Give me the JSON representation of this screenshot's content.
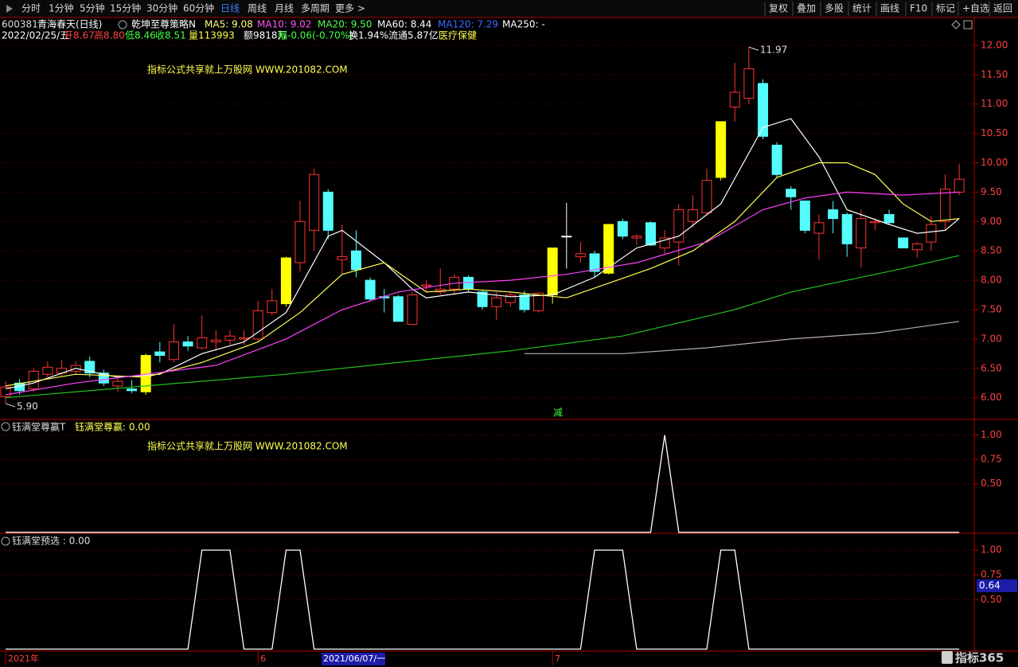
{
  "toolbar": {
    "left": [
      "分时",
      "1分钟",
      "5分钟",
      "15分钟",
      "30分钟",
      "60分钟",
      "日线",
      "周线",
      "月线",
      "多周期",
      "更多 >"
    ],
    "active": 6,
    "right": [
      "复权",
      "叠加",
      "多股",
      "统计",
      "画线",
      "F10",
      "标记",
      "+自选",
      "返回"
    ]
  },
  "info": {
    "code": "600381",
    "name": "青海春天(日线)",
    "strategy": "乾坤至尊策略N",
    "extra_ma": {
      "text": "MA250: -",
      "color": "#ffffff"
    },
    "row2": [
      {
        "text": "2022/02/25/五",
        "color": "#ffffff"
      },
      {
        "text": "开8.67",
        "color": "#ff4040"
      },
      {
        "text": "高8.80",
        "color": "#ff4040"
      },
      {
        "text": "低8.46",
        "color": "#40ff40"
      },
      {
        "text": "收8.51",
        "color": "#40ff40"
      },
      {
        "text": "量113993",
        "color": "#ffff54"
      },
      {
        "text": "额9818万",
        "color": "#ffffff"
      },
      {
        "text": "幅-0.06(-0.70%)",
        "color": "#40ff40"
      },
      {
        "text": "换1.94%",
        "color": "#ffffff"
      },
      {
        "text": "流通5.87亿",
        "color": "#ffffff"
      },
      {
        "text": "医疗保健",
        "color": "#ffff54"
      }
    ]
  },
  "watermark": [
    "指标公式共享就上万股网 WWW.201082.COM",
    "指标公式共享就上万股网 WWW.201082.COM"
  ],
  "signal_label": "减",
  "cursor_date": "2021/06/07/一",
  "logo": "指标365",
  "chart_data": [
    {
      "type": "candlestick",
      "categories": [
        "2021年",
        null,
        null,
        null,
        null,
        null,
        null,
        null,
        null,
        null,
        null,
        null,
        null,
        null,
        null,
        null,
        null,
        null,
        "6",
        null,
        null,
        null,
        null,
        null,
        null,
        null,
        null,
        null,
        null,
        null,
        null,
        null,
        null,
        null,
        null,
        null,
        null,
        null,
        null,
        "7",
        null,
        null,
        null,
        null,
        null,
        null,
        null,
        null,
        null,
        null,
        null,
        null,
        null,
        null,
        null,
        null,
        null,
        null,
        null,
        null,
        null,
        null,
        null,
        null,
        null,
        null,
        null,
        null,
        null
      ],
      "open": [
        6.02,
        6.25,
        6.15,
        6.4,
        6.42,
        6.45,
        6.62,
        6.42,
        6.2,
        6.15,
        6.1,
        6.78,
        6.65,
        6.95,
        6.85,
        6.95,
        6.98,
        7.0,
        7.0,
        7.45,
        7.6,
        8.3,
        8.85,
        9.5,
        8.35,
        8.5,
        8.0,
        7.72,
        7.72,
        7.25,
        7.9,
        7.8,
        7.85,
        8.05,
        7.8,
        7.55,
        7.62,
        7.75,
        7.48,
        7.75,
        8.75,
        8.4,
        8.45,
        8.12,
        9.0,
        8.72,
        8.98,
        8.55,
        8.65,
        9.0,
        9.15,
        9.75,
        10.95,
        11.1,
        11.35,
        10.3,
        9.55,
        9.35,
        8.8,
        9.2,
        9.12,
        8.55,
        8.98,
        9.12,
        8.72,
        8.52,
        8.65,
        9.0,
        9.5
      ],
      "high": [
        6.28,
        6.32,
        6.5,
        6.62,
        6.65,
        6.62,
        6.7,
        6.48,
        6.35,
        6.3,
        6.75,
        6.95,
        7.25,
        7.05,
        7.4,
        7.15,
        7.15,
        7.15,
        7.65,
        7.85,
        8.4,
        9.35,
        9.9,
        9.55,
        8.95,
        8.85,
        8.05,
        7.85,
        7.75,
        7.8,
        8.0,
        8.2,
        8.1,
        8.08,
        7.82,
        7.8,
        7.8,
        7.82,
        7.8,
        8.55,
        9.32,
        8.65,
        8.5,
        8.95,
        9.05,
        8.78,
        9.0,
        8.85,
        9.3,
        9.45,
        9.9,
        10.7,
        11.7,
        11.97,
        11.42,
        10.35,
        9.6,
        9.35,
        9.12,
        9.35,
        9.15,
        9.2,
        9.05,
        9.2,
        8.72,
        8.65,
        9.1,
        9.8,
        9.98
      ],
      "low": [
        5.9,
        6.05,
        6.1,
        6.35,
        6.38,
        6.4,
        6.35,
        6.2,
        6.1,
        6.08,
        6.05,
        6.6,
        6.6,
        6.8,
        6.82,
        6.8,
        6.9,
        6.9,
        6.95,
        7.4,
        7.55,
        8.15,
        8.5,
        8.7,
        8.1,
        8.05,
        7.65,
        7.45,
        7.3,
        7.25,
        7.8,
        7.75,
        7.75,
        7.8,
        7.5,
        7.32,
        7.55,
        7.45,
        7.45,
        7.6,
        8.2,
        8.3,
        8.05,
        8.1,
        8.7,
        8.6,
        8.58,
        8.45,
        8.25,
        8.9,
        9.1,
        9.7,
        10.7,
        11.0,
        10.4,
        9.75,
        9.2,
        8.8,
        8.35,
        8.8,
        8.4,
        8.22,
        8.85,
        8.95,
        8.55,
        8.38,
        8.5,
        8.85,
        9.45
      ],
      "close": [
        6.18,
        6.12,
        6.45,
        6.52,
        6.5,
        6.55,
        6.42,
        6.25,
        6.28,
        6.12,
        6.72,
        6.72,
        6.95,
        6.88,
        7.02,
        6.98,
        7.05,
        7.02,
        7.48,
        7.65,
        8.38,
        9.0,
        9.8,
        8.85,
        8.4,
        8.18,
        7.68,
        7.7,
        7.3,
        7.75,
        7.92,
        7.85,
        8.05,
        7.85,
        7.55,
        7.7,
        7.75,
        7.5,
        7.78,
        8.55,
        8.75,
        8.45,
        8.15,
        8.95,
        8.75,
        8.75,
        8.6,
        8.72,
        9.2,
        9.2,
        9.7,
        10.7,
        11.2,
        11.6,
        10.45,
        9.8,
        9.42,
        8.85,
        8.98,
        9.05,
        8.62,
        9.05,
        9.0,
        8.98,
        8.55,
        8.62,
        8.95,
        9.55,
        9.72
      ],
      "up_color": "#ff3232",
      "down_color": "#54fcfc",
      "flat_color": "#ffffff",
      "highlight": [
        10,
        20,
        39,
        43,
        51
      ],
      "highlight_color": "#ffff00",
      "ylim": [
        5.63,
        12.5
      ],
      "yticks": [
        {
          "value": 6,
          "label": "6.00"
        },
        {
          "value": 6.5,
          "label": "6.50"
        },
        {
          "value": 7,
          "label": "7.00"
        },
        {
          "value": 7.5,
          "label": "7.50"
        },
        {
          "value": 8,
          "label": "8.00"
        },
        {
          "value": 8.5,
          "label": "8.50"
        },
        {
          "value": 9,
          "label": "9.00"
        },
        {
          "value": 9.5,
          "label": "9.50"
        },
        {
          "value": 10,
          "label": "10.00"
        },
        {
          "value": 10.5,
          "label": "10.50"
        },
        {
          "value": 11,
          "label": "11.00"
        },
        {
          "value": 11.5,
          "label": "11.50"
        },
        {
          "value": 12,
          "label": "12.00"
        }
      ],
      "grid": true,
      "series": [
        {
          "label": "MA5: 9.08",
          "label_color": "#ffff80",
          "color": "#ffffff",
          "x": [
            0,
            2,
            5,
            8,
            11,
            14,
            17,
            20,
            23,
            24,
            27,
            29,
            30,
            33,
            36,
            39,
            42,
            45,
            48,
            51,
            54,
            56,
            58,
            60,
            63,
            65,
            67,
            68
          ],
          "values": [
            6.15,
            6.25,
            6.5,
            6.35,
            6.4,
            6.75,
            6.95,
            7.45,
            8.75,
            8.85,
            8.3,
            7.85,
            7.7,
            7.8,
            7.72,
            7.75,
            8.05,
            8.55,
            8.75,
            9.3,
            10.6,
            10.75,
            10.1,
            9.2,
            8.95,
            8.8,
            8.85,
            9.05
          ]
        },
        {
          "label": "MA10: 9.02",
          "label_color": "#ff54ff",
          "color": "#ffff54",
          "x": [
            0,
            5,
            10,
            14,
            18,
            21,
            24,
            27,
            30,
            33,
            36,
            40,
            43,
            46,
            49,
            52,
            55,
            58,
            60,
            62,
            64,
            66,
            68
          ],
          "values": [
            6.2,
            6.4,
            6.35,
            6.6,
            6.95,
            7.45,
            8.1,
            8.3,
            7.8,
            7.85,
            7.8,
            7.7,
            7.95,
            8.2,
            8.5,
            9.0,
            9.75,
            10.0,
            10.0,
            9.8,
            9.3,
            9.0,
            9.05
          ]
        },
        {
          "label": "MA20: 9.50",
          "label_color": "#54ff54",
          "color": "#ff40ff",
          "x": [
            0,
            5,
            10,
            15,
            20,
            24,
            28,
            32,
            36,
            40,
            45,
            50,
            54,
            57,
            60,
            64,
            68
          ],
          "values": [
            6.05,
            6.25,
            6.4,
            6.55,
            7.0,
            7.5,
            7.8,
            7.95,
            8.0,
            8.1,
            8.3,
            8.65,
            9.2,
            9.4,
            9.5,
            9.45,
            9.5
          ]
        },
        {
          "label": "MA60: 8.44",
          "label_color": "#ffffff",
          "color": "#20c020",
          "x": [
            0,
            10,
            20,
            28,
            36,
            44,
            52,
            56,
            60,
            64,
            68
          ],
          "values": [
            6.0,
            6.2,
            6.4,
            6.6,
            6.8,
            7.05,
            7.5,
            7.8,
            8.0,
            8.2,
            8.42
          ]
        },
        {
          "label": "MA120: 7.29",
          "label_color": "#3a6bff",
          "color": "#b0b0b0",
          "x": [
            37,
            44,
            50,
            56,
            62,
            68
          ],
          "values": [
            6.75,
            6.75,
            6.85,
            7.0,
            7.1,
            7.3
          ]
        }
      ],
      "annotations": [
        {
          "index": 53,
          "value": 11.97,
          "label": "11.97"
        },
        {
          "index": 0,
          "value": 5.9,
          "label": "5.90"
        }
      ]
    },
    {
      "type": "line",
      "title": "钰满堂尊赢T",
      "value_text": "钰满堂尊赢: 0.00",
      "color": "#ffffff",
      "values": [
        0,
        0,
        0,
        0,
        0,
        0,
        0,
        0,
        0,
        0,
        0,
        0,
        0,
        0,
        0,
        0,
        0,
        0,
        0,
        0,
        0,
        0,
        0,
        0,
        0,
        0,
        0,
        0,
        0,
        0,
        0,
        0,
        0,
        0,
        0,
        0,
        0,
        0,
        0,
        0,
        0,
        0,
        0,
        0,
        0,
        0,
        0,
        1,
        0,
        0,
        0,
        0,
        0,
        0,
        0,
        0,
        0,
        0,
        0,
        0,
        0,
        0,
        0,
        0,
        0,
        0,
        0,
        0,
        0
      ],
      "ylim": [
        -0.01,
        1.16
      ],
      "yticks": [
        {
          "value": 0.5,
          "label": "0.50"
        },
        {
          "value": 0.75,
          "label": "0.75"
        },
        {
          "value": 1,
          "label": "1.00"
        }
      ],
      "grid": true
    },
    {
      "type": "line",
      "title": "钰满堂预选 : 0.00",
      "color": "#ffffff",
      "values": [
        0,
        0,
        0,
        0,
        0,
        0,
        0,
        0,
        0,
        0,
        0,
        0,
        0,
        0,
        1,
        1,
        1,
        0,
        0,
        0,
        1,
        1,
        0,
        0,
        0,
        0,
        0,
        0,
        0,
        0,
        0,
        0,
        0,
        0,
        0,
        0,
        0,
        0,
        0,
        0,
        0,
        0,
        1,
        1,
        1,
        0,
        0,
        0,
        0,
        0,
        0,
        1,
        1,
        0,
        0,
        0,
        0,
        0,
        0,
        0,
        0,
        0,
        0,
        0,
        0,
        0,
        0,
        0,
        0
      ],
      "ylim": [
        -0.02,
        1.17
      ],
      "yticks": [
        {
          "value": 0.5,
          "label": "0.50"
        },
        {
          "value": 0.75,
          "label": "0.75"
        },
        {
          "value": 1,
          "label": "1.00"
        }
      ],
      "grid": true,
      "cursor": {
        "value": 0.64,
        "label": "0.64"
      }
    }
  ]
}
